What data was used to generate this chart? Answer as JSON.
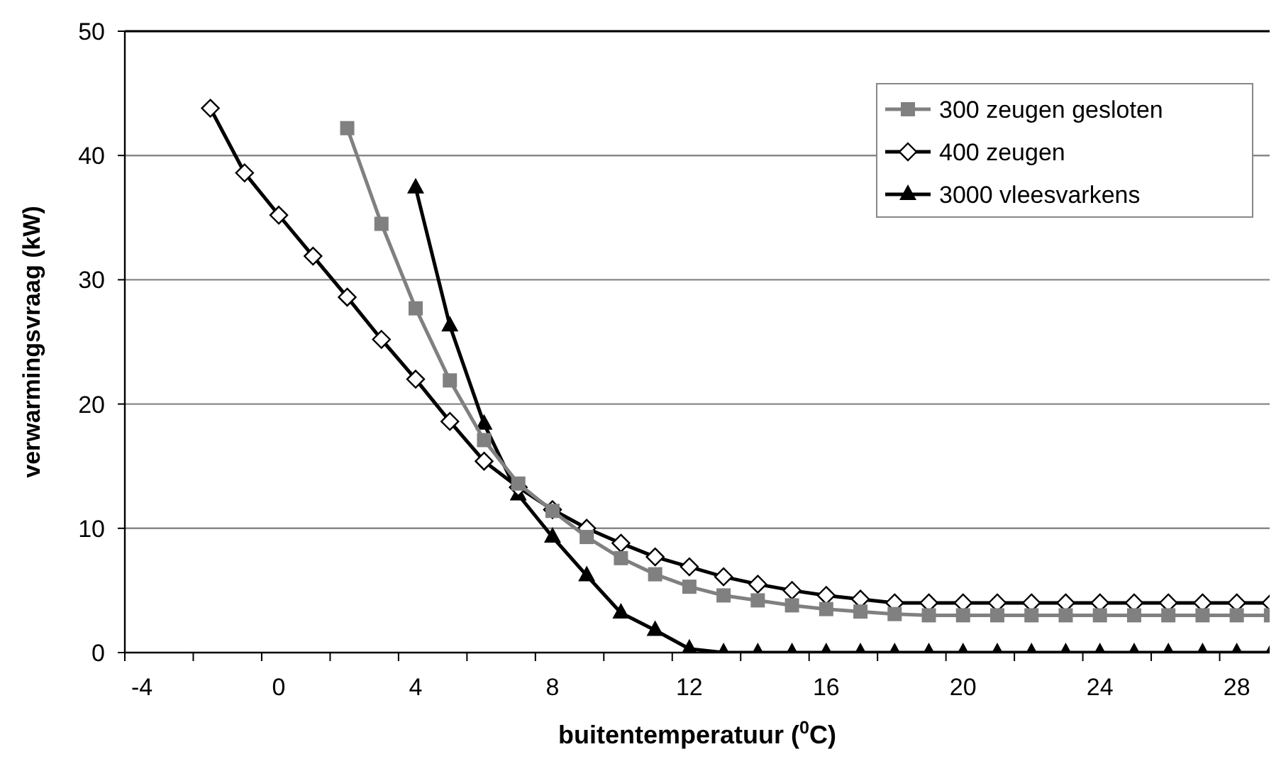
{
  "chart_data": {
    "type": "line",
    "xlabel": "buitentemperatuur ($^{0}$C)",
    "ylabel": "verwarmingsvraag (kW)",
    "categories": [
      "-4",
      null,
      null,
      null,
      "0",
      null,
      null,
      null,
      "4",
      null,
      null,
      null,
      "8",
      null,
      null,
      null,
      "12",
      null,
      null,
      null,
      "16",
      null,
      null,
      null,
      "20",
      null,
      null,
      null,
      "24",
      null,
      null,
      null,
      "28",
      null
    ],
    "series": [
      {
        "name": "300 zeugen gesloten",
        "color": "#808080",
        "marker": "square",
        "values": [
          null,
          null,
          null,
          null,
          null,
          null,
          42.2,
          34.5,
          27.7,
          21.9,
          17.1,
          13.6,
          11.4,
          9.3,
          7.6,
          6.3,
          5.3,
          4.6,
          4.2,
          3.8,
          3.5,
          3.3,
          3.1,
          3.0,
          3.0,
          3.0,
          3.0,
          3.0,
          3.0,
          3.0,
          3.0,
          3.0,
          3.0,
          3.0
        ]
      },
      {
        "name": "400 zeugen",
        "color": "#000000",
        "marker": "diamond",
        "values": [
          null,
          null,
          43.8,
          38.6,
          35.2,
          31.9,
          28.6,
          25.2,
          22.0,
          18.6,
          15.4,
          13.3,
          11.5,
          10.0,
          8.8,
          7.7,
          6.9,
          6.1,
          5.5,
          5.0,
          4.6,
          4.3,
          4.0,
          4.0,
          4.0,
          4.0,
          4.0,
          4.0,
          4.0,
          4.0,
          4.0,
          4.0,
          4.0,
          4.0
        ]
      },
      {
        "name": "3000 vleesvarkens",
        "color": "#000000",
        "marker": "triangle",
        "values": [
          null,
          null,
          null,
          null,
          null,
          null,
          null,
          null,
          37.4,
          26.3,
          18.4,
          12.7,
          9.3,
          6.2,
          3.2,
          1.8,
          0.3,
          0,
          0,
          0,
          0,
          0,
          0,
          0,
          0,
          0,
          0,
          0,
          0,
          0,
          0,
          0,
          0,
          0
        ]
      }
    ],
    "ylim": [
      0,
      50
    ],
    "yticks": [
      0,
      10,
      20,
      30,
      40,
      50
    ],
    "grid": "y",
    "legend": "top right"
  }
}
